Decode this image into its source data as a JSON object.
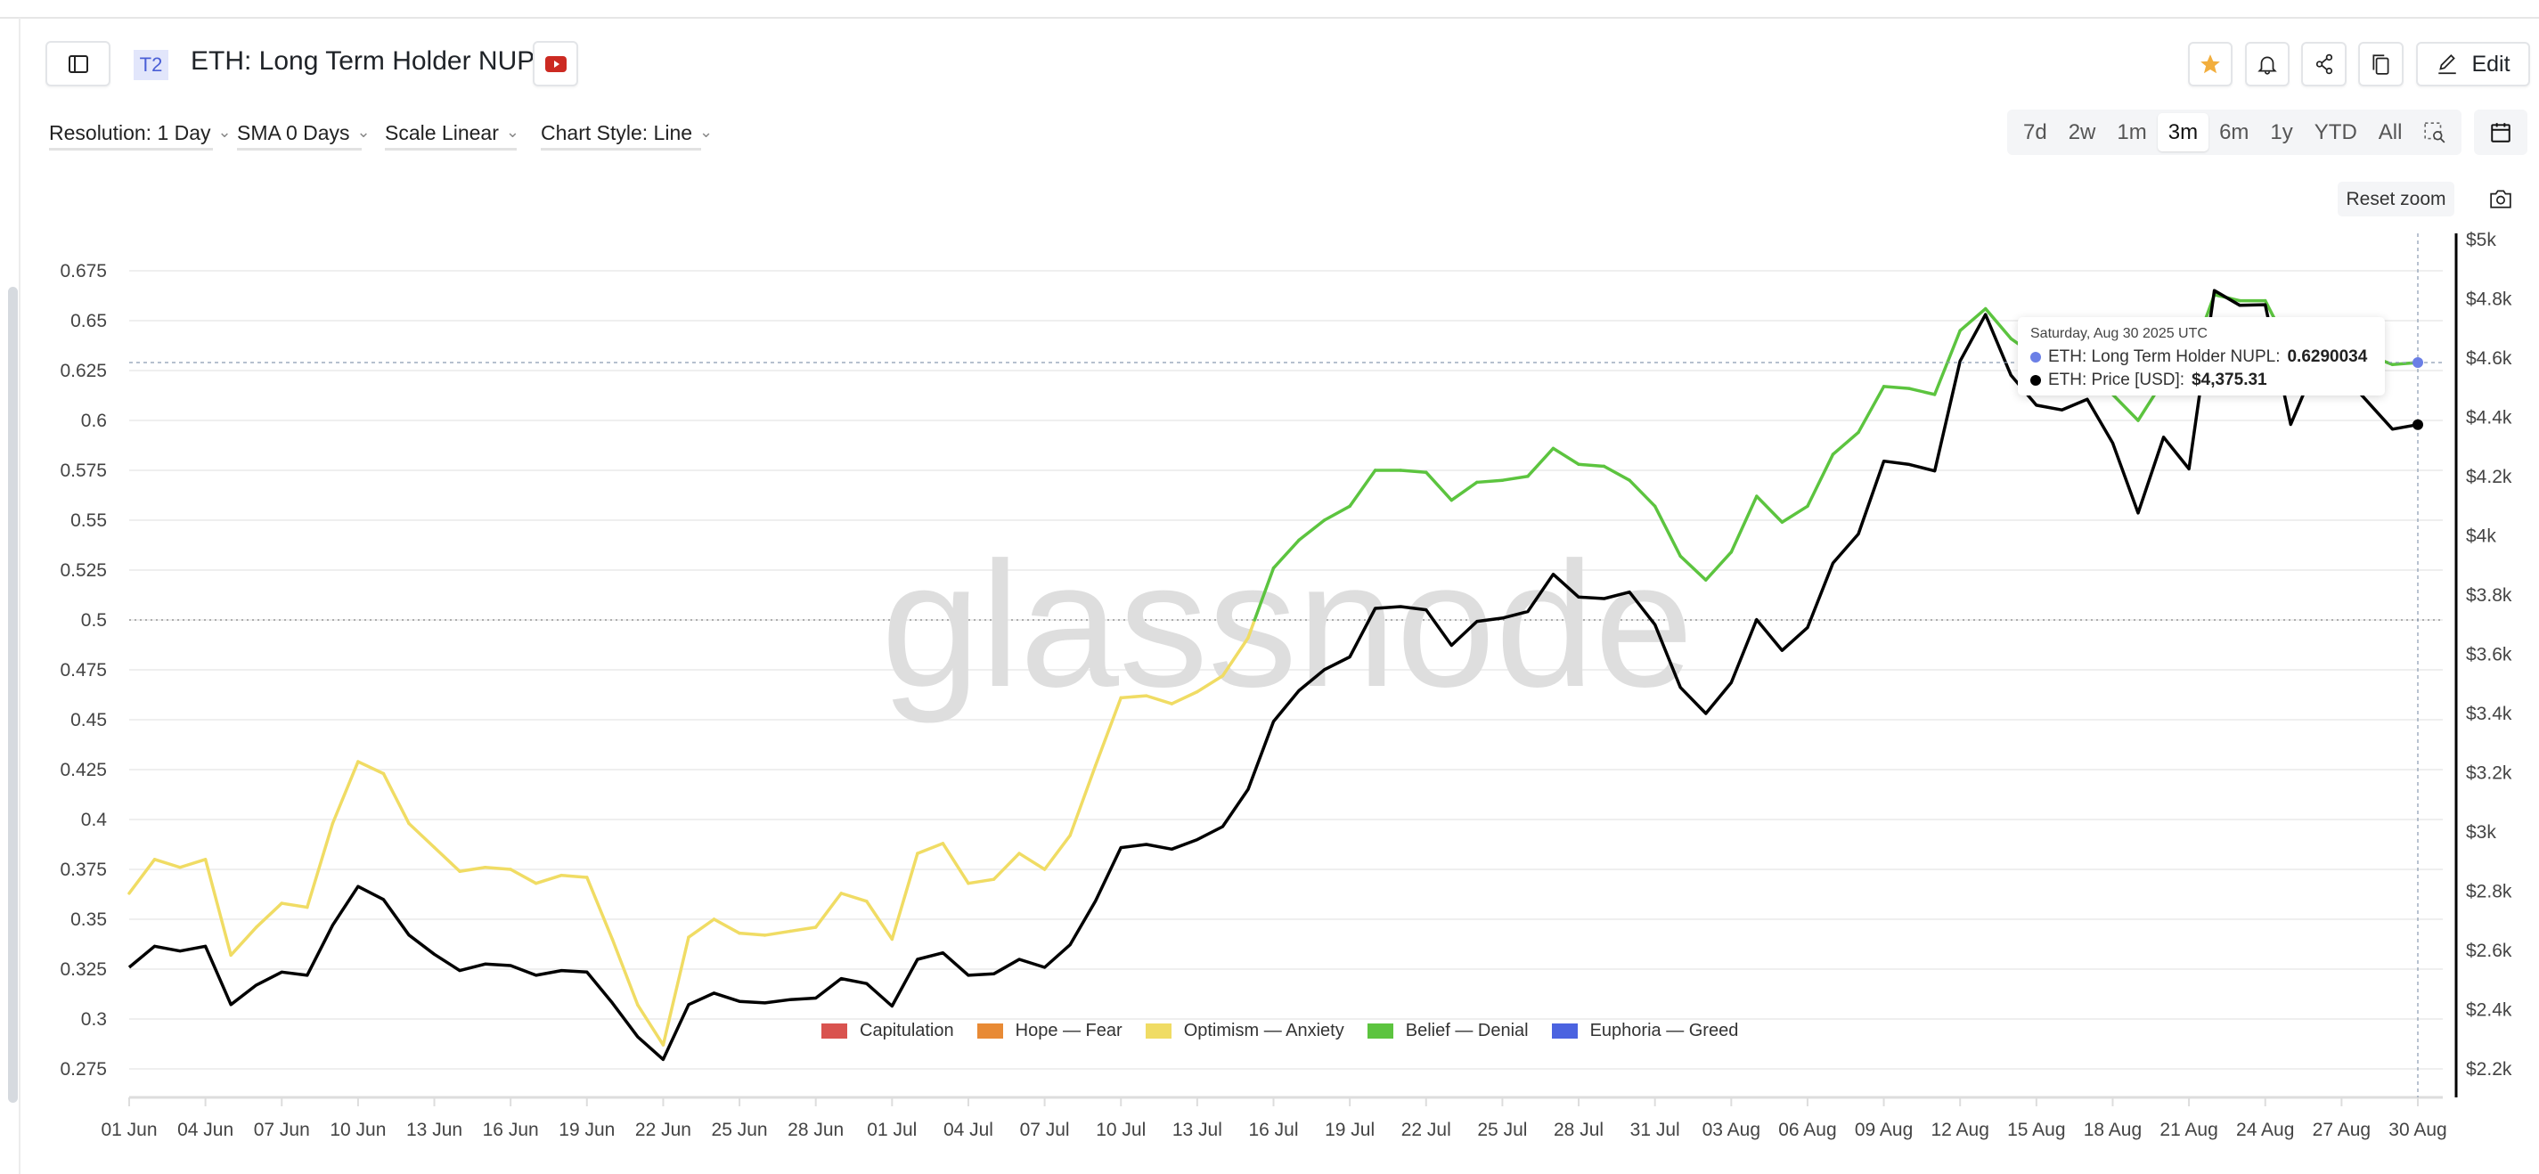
{
  "header": {
    "badge": "T2",
    "title": "ETH: Long Term Holder NUPL",
    "edit_label": "Edit",
    "icons": {
      "sidebar": "sidebar-toggle-icon",
      "video": "youtube-icon",
      "star": "star-icon",
      "alert": "bell-icon",
      "share": "share-icon",
      "copy": "copy-icon",
      "edit": "pencil-icon",
      "calendar": "calendar-icon",
      "zoom_select": "zoom-select-icon",
      "screenshot": "camera-icon"
    },
    "star_color": "#f2ae3d",
    "video_color": "#cc2a22"
  },
  "controls": {
    "resolution": "Resolution: 1 Day",
    "sma": "SMA 0 Days",
    "scale": "Scale Linear",
    "chart_style": "Chart Style: Line"
  },
  "ranges": [
    "7d",
    "2w",
    "1m",
    "3m",
    "6m",
    "1y",
    "YTD",
    "All"
  ],
  "active_range": "3m",
  "reset_zoom": "Reset zoom",
  "watermark": "glassnode",
  "tooltip": {
    "date": "Saturday, Aug 30 2025 UTC",
    "rows": [
      {
        "label": "ETH: Long Term Holder NUPL: ",
        "value": "0.6290034",
        "color": "#6b7fe6"
      },
      {
        "label": "ETH: Price [USD]: ",
        "value": "$4,375.31",
        "color": "#000000"
      }
    ]
  },
  "chart_data": {
    "type": "line",
    "x": [
      "01 Jun",
      "02 Jun",
      "03 Jun",
      "04 Jun",
      "05 Jun",
      "06 Jun",
      "07 Jun",
      "08 Jun",
      "09 Jun",
      "10 Jun",
      "11 Jun",
      "12 Jun",
      "13 Jun",
      "14 Jun",
      "15 Jun",
      "16 Jun",
      "17 Jun",
      "18 Jun",
      "19 Jun",
      "20 Jun",
      "21 Jun",
      "22 Jun",
      "23 Jun",
      "24 Jun",
      "25 Jun",
      "26 Jun",
      "27 Jun",
      "28 Jun",
      "29 Jun",
      "30 Jun",
      "01 Jul",
      "02 Jul",
      "03 Jul",
      "04 Jul",
      "05 Jul",
      "06 Jul",
      "07 Jul",
      "08 Jul",
      "09 Jul",
      "10 Jul",
      "11 Jul",
      "12 Jul",
      "13 Jul",
      "14 Jul",
      "15 Jul",
      "16 Jul",
      "17 Jul",
      "18 Jul",
      "19 Jul",
      "20 Jul",
      "21 Jul",
      "22 Jul",
      "23 Jul",
      "24 Jul",
      "25 Jul",
      "26 Jul",
      "27 Jul",
      "28 Jul",
      "29 Jul",
      "30 Jul",
      "31 Jul",
      "01 Aug",
      "02 Aug",
      "03 Aug",
      "04 Aug",
      "05 Aug",
      "06 Aug",
      "07 Aug",
      "08 Aug",
      "09 Aug",
      "10 Aug",
      "11 Aug",
      "12 Aug",
      "13 Aug",
      "14 Aug",
      "15 Aug",
      "16 Aug",
      "17 Aug",
      "18 Aug",
      "19 Aug",
      "20 Aug",
      "21 Aug",
      "22 Aug",
      "23 Aug",
      "24 Aug",
      "25 Aug",
      "26 Aug",
      "27 Aug",
      "28 Aug",
      "29 Aug",
      "30 Aug"
    ],
    "x_tick_labels": [
      "01 Jun",
      "04 Jun",
      "07 Jun",
      "10 Jun",
      "13 Jun",
      "16 Jun",
      "19 Jun",
      "22 Jun",
      "25 Jun",
      "28 Jun",
      "01 Jul",
      "04 Jul",
      "07 Jul",
      "10 Jul",
      "13 Jul",
      "16 Jul",
      "19 Jul",
      "22 Jul",
      "25 Jul",
      "28 Jul",
      "31 Jul",
      "03 Aug",
      "06 Aug",
      "09 Aug",
      "12 Aug",
      "15 Aug",
      "18 Aug",
      "21 Aug",
      "24 Aug",
      "27 Aug",
      "30 Aug"
    ],
    "series": [
      {
        "name": "ETH: Long Term Holder NUPL",
        "axis": "left",
        "values": [
          0.363,
          0.38,
          0.376,
          0.38,
          0.332,
          0.346,
          0.358,
          0.356,
          0.398,
          0.429,
          0.423,
          0.398,
          0.386,
          0.374,
          0.376,
          0.375,
          0.368,
          0.372,
          0.371,
          0.34,
          0.307,
          0.287,
          0.341,
          0.35,
          0.343,
          0.342,
          0.344,
          0.346,
          0.363,
          0.359,
          0.34,
          0.383,
          0.388,
          0.368,
          0.37,
          0.383,
          0.375,
          0.392,
          0.427,
          0.461,
          0.462,
          0.458,
          0.464,
          0.472,
          0.491,
          0.526,
          0.54,
          0.55,
          0.557,
          0.575,
          0.575,
          0.574,
          0.56,
          0.569,
          0.57,
          0.572,
          0.586,
          0.578,
          0.577,
          0.57,
          0.557,
          0.532,
          0.52,
          0.534,
          0.562,
          0.549,
          0.557,
          0.583,
          0.594,
          0.617,
          0.616,
          0.613,
          0.645,
          0.656,
          0.641,
          0.632,
          0.628,
          0.63,
          0.613,
          0.6,
          0.62,
          0.628,
          0.663,
          0.66,
          0.66,
          0.635,
          0.64,
          0.638,
          0.633,
          0.628,
          0.6290034
        ]
      },
      {
        "name": "ETH: Price [USD]",
        "axis": "right",
        "color": "#000000",
        "values": [
          2543,
          2614,
          2598,
          2614,
          2417,
          2483,
          2527,
          2516,
          2685,
          2816,
          2772,
          2652,
          2587,
          2532,
          2554,
          2549,
          2516,
          2532,
          2527,
          2423,
          2308,
          2232,
          2417,
          2456,
          2428,
          2423,
          2434,
          2439,
          2505,
          2488,
          2412,
          2570,
          2592,
          2516,
          2521,
          2570,
          2543,
          2619,
          2767,
          2947,
          2958,
          2942,
          2974,
          3018,
          3144,
          3373,
          3477,
          3548,
          3591,
          3755,
          3761,
          3750,
          3630,
          3711,
          3722,
          3744,
          3870,
          3793,
          3788,
          3810,
          3700,
          3488,
          3400,
          3504,
          3717,
          3613,
          3690,
          3908,
          4006,
          4252,
          4241,
          4219,
          4590,
          4747,
          4542,
          4441,
          4425,
          4461,
          4313,
          4077,
          4333,
          4226,
          4828,
          4778,
          4780,
          4376,
          4580,
          4550,
          4455,
          4360,
          4375.31
        ]
      }
    ],
    "left_axis": {
      "ticks": [
        "0.275",
        "0.3",
        "0.325",
        "0.35",
        "0.375",
        "0.4",
        "0.425",
        "0.45",
        "0.475",
        "0.5",
        "0.525",
        "0.55",
        "0.575",
        "0.6",
        "0.625",
        "0.65",
        "0.675"
      ],
      "range": [
        0.262,
        0.7
      ]
    },
    "right_axis": {
      "ticks": [
        "$2.2k",
        "$2.4k",
        "$2.6k",
        "$2.8k",
        "$3k",
        "$3.2k",
        "$3.4k",
        "$3.6k",
        "$3.8k",
        "$4k",
        "$4.2k",
        "$4.4k",
        "$4.6k",
        "$4.8k",
        "$5k"
      ],
      "range": [
        2200,
        5000
      ]
    },
    "zones": [
      {
        "name": "Capitulation",
        "color": "#d9534f",
        "min": -1,
        "max": 0
      },
      {
        "name": "Hope — Fear",
        "color": "#e88a35",
        "min": 0,
        "max": 0.25
      },
      {
        "name": "Optimism — Anxiety",
        "color": "#f0dc64",
        "min": 0.25,
        "max": 0.5
      },
      {
        "name": "Belief — Denial",
        "color": "#5cc43f",
        "min": 0.5,
        "max": 0.75
      },
      {
        "name": "Euphoria — Greed",
        "color": "#4b63e0",
        "min": 0.75,
        "max": 1
      }
    ],
    "reference_line": 0.5,
    "grid": true,
    "legend_position": "bottom-center"
  }
}
